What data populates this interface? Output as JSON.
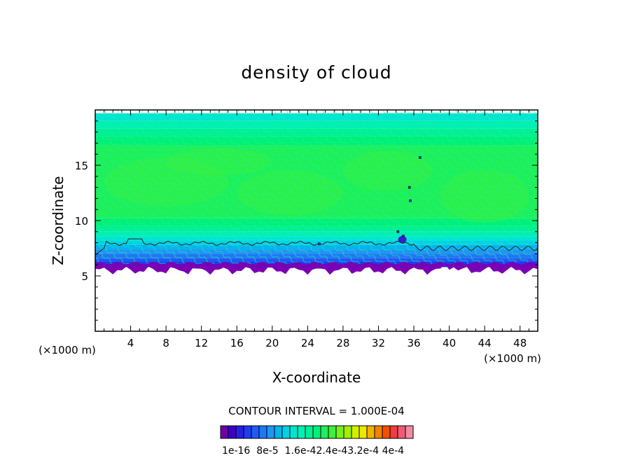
{
  "chart_data": {
    "type": "heatmap",
    "title": "density of cloud",
    "xlabel": "X-coordinate",
    "ylabel": "Z-coordinate",
    "x_unit": "(×1000 m)",
    "x_unit_right": "(×1000 m)",
    "xlim": [
      0,
      50
    ],
    "ylim": [
      0,
      20
    ],
    "x_ticks": [
      "4",
      "8",
      "12",
      "16",
      "20",
      "24",
      "28",
      "32",
      "36",
      "40",
      "44",
      "48"
    ],
    "y_ticks": [
      "5",
      "10",
      "15"
    ],
    "contour_interval_label": "CONTOUR INTERVAL = 1.000E-04",
    "colorbar_labels": [
      "1e-16",
      "8e-5",
      "1.6e-4",
      "2.4e-4",
      "3.2e-4",
      "4e-4"
    ],
    "colorbar_label_text": "1e-16  8e-5  1.6e-42.4e-43.2e-4 4e-4",
    "colorbar_colors": [
      "#6a00aa",
      "#3c00c8",
      "#2a1ee0",
      "#1e3cf0",
      "#1e5af5",
      "#1e78f5",
      "#1e96f5",
      "#00b4f0",
      "#00d2e6",
      "#00e6d2",
      "#00f0b4",
      "#00f096",
      "#00f078",
      "#1ef05a",
      "#3cf03c",
      "#78f01e",
      "#a0f000",
      "#d2f000",
      "#f0e600",
      "#f0b400",
      "#f08200",
      "#f05000",
      "#f03c3c",
      "#f05a78",
      "#f08ca0"
    ],
    "cloud_base_km": 5.5,
    "cloud_top_km": 19.7,
    "colormap_note": "lowest shaded densities purple/blue near z=5.5-8, higher densities green aloft"
  }
}
